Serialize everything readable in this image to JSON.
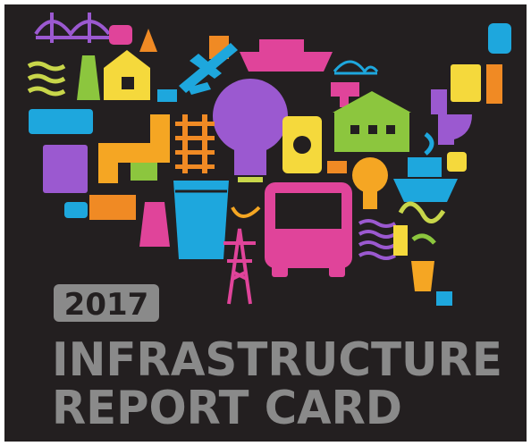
{
  "badge": "2017",
  "title_lines": [
    "INFRASTRUCTURE",
    "REPORT CARD"
  ]
}
